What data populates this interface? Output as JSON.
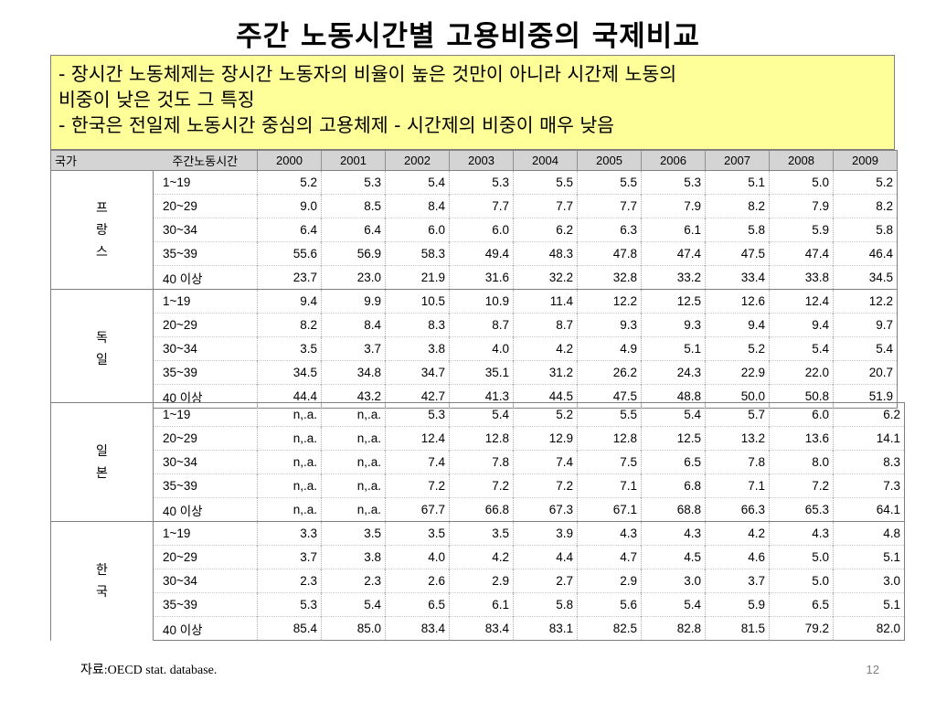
{
  "slide": {
    "title": "주간 노동시간별 고용비중의 국제비교",
    "notes": [
      "- 장시간 노동체제는 장시간 노동자의 비율이 높은 것만이 아니라 시간제 노동의",
      "비중이 낮은 것도  그 특징",
      "- 한국은 전일제 노동시간 중심의 고용체제 - 시간제의 비중이 매우 낮음"
    ],
    "source_label": "자료",
    "source_text": ":OECD stat. database.",
    "page_number": "12"
  },
  "table": {
    "header_country": "국가",
    "header_hours": "주간노동시간",
    "years": [
      "2000",
      "2001",
      "2002",
      "2003",
      "2004",
      "2005",
      "2006",
      "2007",
      "2008",
      "2009"
    ],
    "groups": [
      {
        "country": "프랑스",
        "rows": [
          {
            "range": "1~19",
            "values": [
              "5.2",
              "5.3",
              "5.4",
              "5.3",
              "5.5",
              "5.5",
              "5.3",
              "5.1",
              "5.0",
              "5.2"
            ]
          },
          {
            "range": "20~29",
            "values": [
              "9.0",
              "8.5",
              "8.4",
              "7.7",
              "7.7",
              "7.7",
              "7.9",
              "8.2",
              "7.9",
              "8.2"
            ]
          },
          {
            "range": "30~34",
            "values": [
              "6.4",
              "6.4",
              "6.0",
              "6.0",
              "6.2",
              "6.3",
              "6.1",
              "5.8",
              "5.9",
              "5.8"
            ]
          },
          {
            "range": "35~39",
            "values": [
              "55.6",
              "56.9",
              "58.3",
              "49.4",
              "48.3",
              "47.8",
              "47.4",
              "47.5",
              "47.4",
              "46.4"
            ]
          },
          {
            "range": "40 이상",
            "values": [
              "23.7",
              "23.0",
              "21.9",
              "31.6",
              "32.2",
              "32.8",
              "33.2",
              "33.4",
              "33.8",
              "34.5"
            ]
          }
        ]
      },
      {
        "country": "독일",
        "rows": [
          {
            "range": "1~19",
            "values": [
              "9.4",
              "9.9",
              "10.5",
              "10.9",
              "11.4",
              "12.2",
              "12.5",
              "12.6",
              "12.4",
              "12.2"
            ]
          },
          {
            "range": "20~29",
            "values": [
              "8.2",
              "8.4",
              "8.3",
              "8.7",
              "8.7",
              "9.3",
              "9.3",
              "9.4",
              "9.4",
              "9.7"
            ]
          },
          {
            "range": "30~34",
            "values": [
              "3.5",
              "3.7",
              "3.8",
              "4.0",
              "4.2",
              "4.9",
              "5.1",
              "5.2",
              "5.4",
              "5.4"
            ]
          },
          {
            "range": "35~39",
            "values": [
              "34.5",
              "34.8",
              "34.7",
              "35.1",
              "31.2",
              "26.2",
              "24.3",
              "22.9",
              "22.0",
              "20.7"
            ]
          },
          {
            "range": "40 이상",
            "values": [
              "44.4",
              "43.2",
              "42.7",
              "41.3",
              "44.5",
              "47.5",
              "48.8",
              "50.0",
              "50.8",
              "51.9"
            ]
          }
        ]
      },
      {
        "country": "일본",
        "rows": [
          {
            "range": "1~19",
            "values": [
              "n,.a.",
              "n,.a.",
              "5.3",
              "5.4",
              "5.2",
              "5.5",
              "5.4",
              "5.7",
              "6.0",
              "6.2"
            ]
          },
          {
            "range": "20~29",
            "values": [
              "n,.a.",
              "n,.a.",
              "12.4",
              "12.8",
              "12.9",
              "12.8",
              "12.5",
              "13.2",
              "13.6",
              "14.1"
            ]
          },
          {
            "range": "30~34",
            "values": [
              "n,.a.",
              "n,.a.",
              "7.4",
              "7.8",
              "7.4",
              "7.5",
              "6.5",
              "7.8",
              "8.0",
              "8.3"
            ]
          },
          {
            "range": "35~39",
            "values": [
              "n,.a.",
              "n,.a.",
              "7.2",
              "7.2",
              "7.2",
              "7.1",
              "6.8",
              "7.1",
              "7.2",
              "7.3"
            ]
          },
          {
            "range": "40 이상",
            "values": [
              "n,.a.",
              "n,.a.",
              "67.7",
              "66.8",
              "67.3",
              "67.1",
              "68.8",
              "66.3",
              "65.3",
              "64.1"
            ]
          }
        ]
      },
      {
        "country": "한국",
        "rows": [
          {
            "range": "1~19",
            "values": [
              "3.3",
              "3.5",
              "3.5",
              "3.5",
              "3.9",
              "4.3",
              "4.3",
              "4.2",
              "4.3",
              "4.8"
            ]
          },
          {
            "range": "20~29",
            "values": [
              "3.7",
              "3.8",
              "4.0",
              "4.2",
              "4.4",
              "4.7",
              "4.5",
              "4.6",
              "5.0",
              "5.1"
            ]
          },
          {
            "range": "30~34",
            "values": [
              "2.3",
              "2.3",
              "2.6",
              "2.9",
              "2.7",
              "2.9",
              "3.0",
              "3.7",
              "5.0",
              "3.0"
            ]
          },
          {
            "range": "35~39",
            "values": [
              "5.3",
              "5.4",
              "6.5",
              "6.1",
              "5.8",
              "5.6",
              "5.4",
              "5.9",
              "6.5",
              "5.1"
            ]
          },
          {
            "range": "40 이상",
            "values": [
              "85.4",
              "85.0",
              "83.4",
              "83.4",
              "83.1",
              "82.5",
              "82.8",
              "81.5",
              "79.2",
              "82.0"
            ]
          }
        ]
      }
    ]
  }
}
